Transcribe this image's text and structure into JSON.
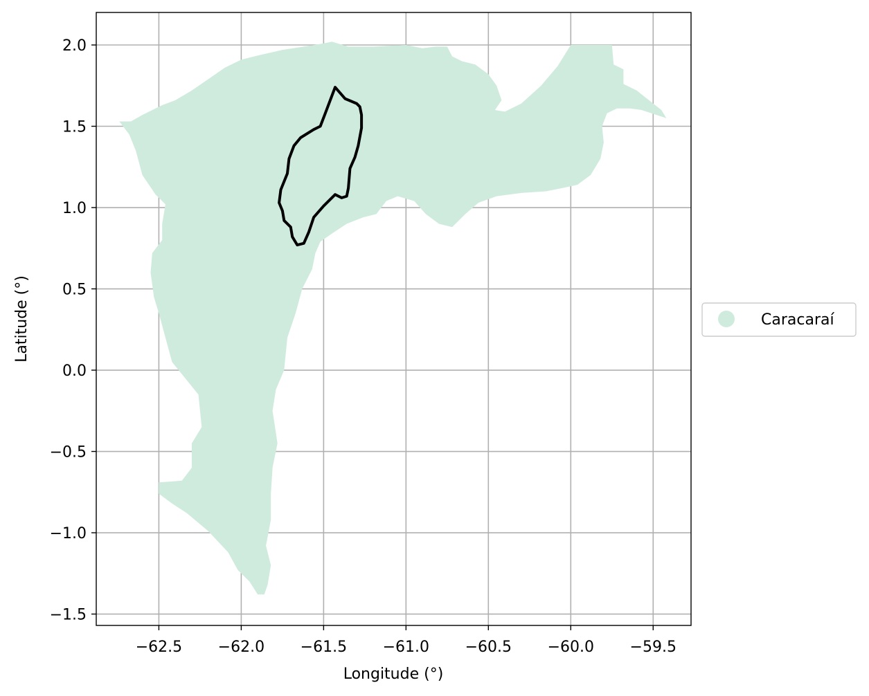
{
  "map": {
    "xlabel": "Longitude (°)",
    "ylabel": "Latitude (°)",
    "xlim": [
      -62.88,
      -59.27
    ],
    "ylim": [
      -1.57,
      2.2
    ],
    "x_ticks": [
      -62.5,
      -62.0,
      -61.5,
      -61.0,
      -60.5,
      -60.0,
      -59.5
    ],
    "x_tick_labels": [
      "−62.5",
      "−62.0",
      "−61.5",
      "−61.0",
      "−60.5",
      "−60.0",
      "−59.5"
    ],
    "y_ticks": [
      2.0,
      1.5,
      1.0,
      0.5,
      0.0,
      -0.5,
      -1.0,
      -1.5
    ],
    "y_tick_labels": [
      "2.0",
      "1.5",
      "1.0",
      "0.5",
      "0.0",
      "−0.5",
      "−1.0",
      "−1.5"
    ],
    "grid": true,
    "legend": {
      "placement": "outside-right",
      "entries": [
        {
          "label": "Caracaraí",
          "color": "#cfebde"
        }
      ]
    },
    "colors": {
      "region_fill": "#cfebde",
      "outline": "#000000",
      "grid": "#b0b0b0"
    },
    "layers": {
      "region_polygon": [
        [
          -62.74,
          1.53
        ],
        [
          -62.67,
          1.53
        ],
        [
          -62.6,
          1.57
        ],
        [
          -62.48,
          1.63
        ],
        [
          -62.4,
          1.66
        ],
        [
          -62.3,
          1.72
        ],
        [
          -62.2,
          1.79
        ],
        [
          -62.1,
          1.86
        ],
        [
          -62.0,
          1.91
        ],
        [
          -61.88,
          1.94
        ],
        [
          -61.75,
          1.97
        ],
        [
          -61.62,
          1.99
        ],
        [
          -61.5,
          2.01
        ],
        [
          -61.45,
          2.02
        ],
        [
          -61.35,
          1.99
        ],
        [
          -61.2,
          1.99
        ],
        [
          -61.0,
          2.0
        ],
        [
          -60.9,
          1.98
        ],
        [
          -60.82,
          1.99
        ],
        [
          -60.75,
          1.99
        ],
        [
          -60.72,
          1.93
        ],
        [
          -60.66,
          1.9
        ],
        [
          -60.58,
          1.88
        ],
        [
          -60.5,
          1.82
        ],
        [
          -60.45,
          1.75
        ],
        [
          -60.42,
          1.66
        ],
        [
          -60.46,
          1.6
        ],
        [
          -60.4,
          1.59
        ],
        [
          -60.3,
          1.64
        ],
        [
          -60.18,
          1.75
        ],
        [
          -60.08,
          1.87
        ],
        [
          -60.0,
          2.0
        ],
        [
          -59.75,
          2.0
        ],
        [
          -59.74,
          1.88
        ],
        [
          -59.68,
          1.85
        ],
        [
          -59.68,
          1.76
        ],
        [
          -59.6,
          1.72
        ],
        [
          -59.55,
          1.68
        ],
        [
          -59.5,
          1.64
        ],
        [
          -59.45,
          1.6
        ],
        [
          -59.42,
          1.55
        ],
        [
          -59.48,
          1.57
        ],
        [
          -59.57,
          1.6
        ],
        [
          -59.64,
          1.61
        ],
        [
          -59.72,
          1.61
        ],
        [
          -59.78,
          1.58
        ],
        [
          -59.81,
          1.5
        ],
        [
          -59.8,
          1.4
        ],
        [
          -59.82,
          1.3
        ],
        [
          -59.88,
          1.2
        ],
        [
          -59.96,
          1.14
        ],
        [
          -60.05,
          1.12
        ],
        [
          -60.15,
          1.1
        ],
        [
          -60.3,
          1.09
        ],
        [
          -60.45,
          1.07
        ],
        [
          -60.56,
          1.03
        ],
        [
          -60.64,
          0.96
        ],
        [
          -60.72,
          0.88
        ],
        [
          -60.8,
          0.9
        ],
        [
          -60.88,
          0.96
        ],
        [
          -60.95,
          1.04
        ],
        [
          -61.05,
          1.07
        ],
        [
          -61.12,
          1.04
        ],
        [
          -61.18,
          0.96
        ],
        [
          -61.26,
          0.94
        ],
        [
          -61.36,
          0.9
        ],
        [
          -61.45,
          0.84
        ],
        [
          -61.52,
          0.79
        ],
        [
          -61.55,
          0.72
        ],
        [
          -61.57,
          0.62
        ],
        [
          -61.63,
          0.5
        ],
        [
          -61.67,
          0.35
        ],
        [
          -61.72,
          0.2
        ],
        [
          -61.74,
          0.0
        ],
        [
          -61.79,
          -0.12
        ],
        [
          -61.81,
          -0.25
        ],
        [
          -61.78,
          -0.45
        ],
        [
          -61.81,
          -0.6
        ],
        [
          -61.82,
          -0.76
        ],
        [
          -61.82,
          -0.92
        ],
        [
          -61.85,
          -1.08
        ],
        [
          -61.82,
          -1.2
        ],
        [
          -61.84,
          -1.32
        ],
        [
          -61.86,
          -1.38
        ],
        [
          -61.9,
          -1.38
        ],
        [
          -61.95,
          -1.3
        ],
        [
          -62.02,
          -1.23
        ],
        [
          -62.08,
          -1.12
        ],
        [
          -62.2,
          -0.99
        ],
        [
          -62.33,
          -0.88
        ],
        [
          -62.42,
          -0.82
        ],
        [
          -62.5,
          -0.76
        ],
        [
          -62.5,
          -0.69
        ],
        [
          -62.36,
          -0.68
        ],
        [
          -62.3,
          -0.6
        ],
        [
          -62.3,
          -0.45
        ],
        [
          -62.24,
          -0.35
        ],
        [
          -62.26,
          -0.15
        ],
        [
          -62.34,
          -0.05
        ],
        [
          -62.42,
          0.05
        ],
        [
          -62.46,
          0.2
        ],
        [
          -62.5,
          0.35
        ],
        [
          -62.53,
          0.45
        ],
        [
          -62.55,
          0.6
        ],
        [
          -62.54,
          0.72
        ],
        [
          -62.48,
          0.8
        ],
        [
          -62.48,
          0.9
        ],
        [
          -62.46,
          1.02
        ],
        [
          -62.52,
          1.08
        ],
        [
          -62.6,
          1.2
        ],
        [
          -62.64,
          1.35
        ],
        [
          -62.68,
          1.45
        ],
        [
          -62.74,
          1.53
        ]
      ],
      "outline_polygon": [
        [
          -61.43,
          1.74
        ],
        [
          -61.37,
          1.67
        ],
        [
          -61.3,
          1.64
        ],
        [
          -61.28,
          1.62
        ],
        [
          -61.27,
          1.57
        ],
        [
          -61.27,
          1.49
        ],
        [
          -61.29,
          1.38
        ],
        [
          -61.31,
          1.31
        ],
        [
          -61.34,
          1.24
        ],
        [
          -61.35,
          1.12
        ],
        [
          -61.36,
          1.07
        ],
        [
          -61.39,
          1.06
        ],
        [
          -61.43,
          1.08
        ],
        [
          -61.5,
          1.01
        ],
        [
          -61.56,
          0.94
        ],
        [
          -61.59,
          0.85
        ],
        [
          -61.62,
          0.78
        ],
        [
          -61.66,
          0.77
        ],
        [
          -61.69,
          0.82
        ],
        [
          -61.7,
          0.88
        ],
        [
          -61.74,
          0.92
        ],
        [
          -61.75,
          0.98
        ],
        [
          -61.77,
          1.03
        ],
        [
          -61.76,
          1.11
        ],
        [
          -61.72,
          1.21
        ],
        [
          -61.71,
          1.3
        ],
        [
          -61.68,
          1.38
        ],
        [
          -61.64,
          1.43
        ],
        [
          -61.56,
          1.48
        ],
        [
          -61.52,
          1.5
        ],
        [
          -61.49,
          1.58
        ],
        [
          -61.43,
          1.74
        ]
      ]
    }
  }
}
